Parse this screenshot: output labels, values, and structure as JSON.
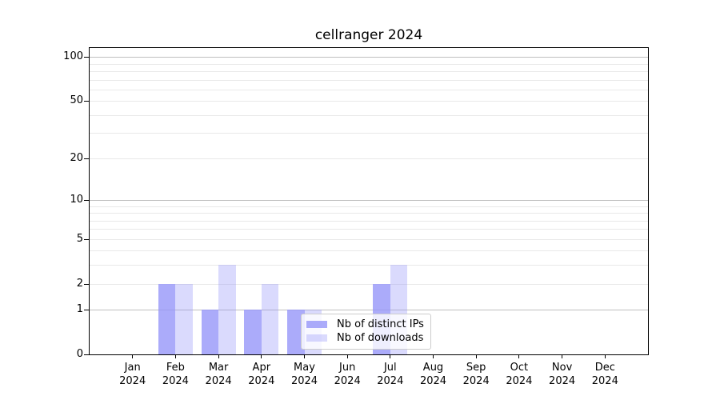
{
  "chart_data": {
    "type": "bar",
    "title": "cellranger 2024",
    "categories": [
      "Jan",
      "Feb",
      "Mar",
      "Apr",
      "May",
      "Jun",
      "Jul",
      "Aug",
      "Sep",
      "Oct",
      "Nov",
      "Dec"
    ],
    "category_year": "2024",
    "series": [
      {
        "name": "Nb of distinct IPs",
        "base_color": "#9696f9",
        "alpha": 0.8,
        "hex_on_white": "#abaafa",
        "values": [
          0,
          2,
          1,
          1,
          1,
          0,
          2,
          0,
          0,
          0,
          0,
          0
        ]
      },
      {
        "name": "Nb of downloads",
        "base_color": "#9696f9",
        "alpha": 0.35,
        "hex_on_white": "#dbdbfa",
        "values": [
          0,
          2,
          3,
          2,
          1,
          0,
          3,
          0,
          0,
          0,
          0,
          0
        ]
      }
    ],
    "yscale": "log1p",
    "ylim": [
      0,
      115
    ],
    "y_tick_values": [
      0,
      1,
      2,
      5,
      10,
      20,
      50,
      100
    ],
    "gridlines": {
      "major_values": [
        1,
        10,
        100
      ],
      "minor_values": [
        2,
        3,
        4,
        5,
        6,
        7,
        8,
        9,
        20,
        30,
        40,
        50,
        60,
        70,
        80,
        90
      ],
      "major_color": "#bfbfbf",
      "minor_color": "#e9e9e9"
    },
    "legend": {
      "location": "lower right",
      "entries": [
        "Nb of distinct IPs",
        "Nb of downloads"
      ]
    },
    "axis_color": "#000000",
    "background_color": "#ffffff"
  }
}
